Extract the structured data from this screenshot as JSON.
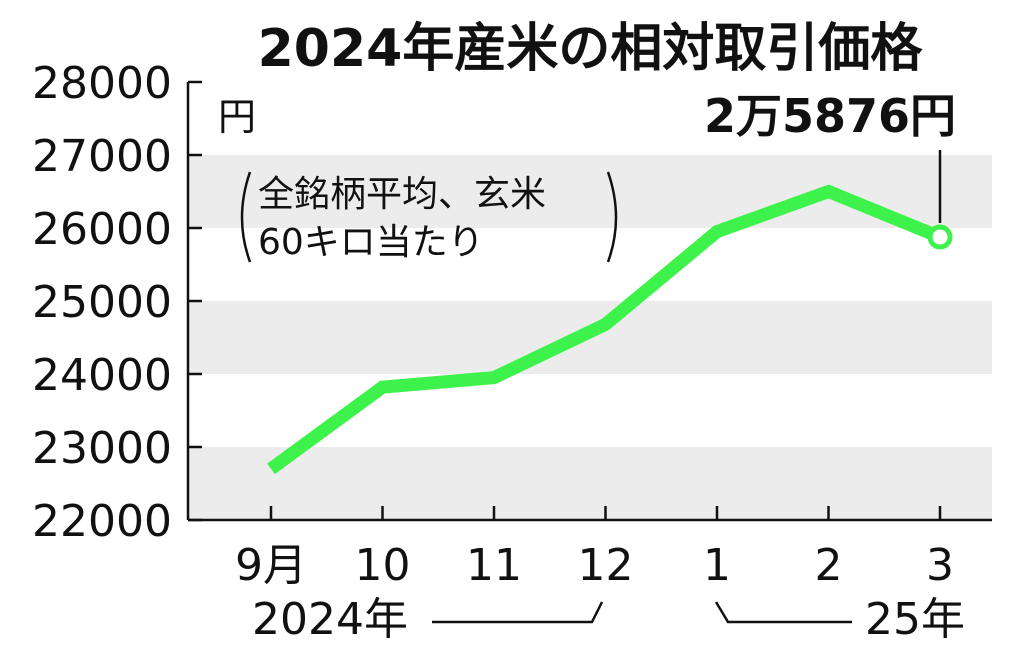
{
  "chart_data": {
    "type": "line",
    "title": "2024年産米の相対取引価格",
    "unit": "円",
    "note_lines": [
      "全銘柄平均、玄米",
      "60キロ当たり"
    ],
    "categories": [
      "9月",
      "10",
      "11",
      "12",
      "1",
      "2",
      "3"
    ],
    "years": [
      "2024年",
      "25年"
    ],
    "values": [
      22700,
      23820,
      23950,
      24680,
      25950,
      26500,
      25876
    ],
    "ylim": [
      22000,
      28000
    ],
    "yticks": [
      "28000",
      "27000",
      "26000",
      "25000",
      "24000",
      "23000",
      "22000"
    ],
    "callout": "2万5876円",
    "line_color": "#3df24a",
    "band_color": "#ececec",
    "grid_bands": true
  }
}
